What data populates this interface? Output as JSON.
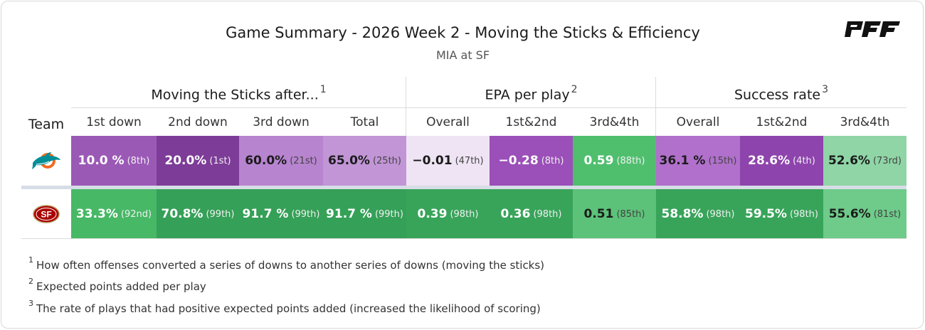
{
  "header": {
    "title": "Game Summary - 2026 Week 2 - Moving the Sticks & Efficiency",
    "subtitle": "MIA at SF",
    "brand": "PFF"
  },
  "table": {
    "team_label": "Team",
    "groups": [
      {
        "label": "Moving the Sticks after...",
        "note": "1"
      },
      {
        "label": "EPA per play",
        "note": "2"
      },
      {
        "label": "Success rate",
        "note": "3"
      }
    ],
    "columns": [
      "1st down",
      "2nd down",
      "3rd down",
      "Total",
      "Overall",
      "1st&2nd",
      "3rd&4th",
      "Overall",
      "1st&2nd",
      "3rd&4th"
    ],
    "rows": [
      {
        "team": "MIA",
        "team_icon": "dolphin-logo-icon",
        "cells": [
          {
            "value": "10.0 %",
            "rank": "(8th)",
            "color": "#9b59b6",
            "dark": true
          },
          {
            "value": "20.0%",
            "rank": "(1st)",
            "color": "#7d3c98",
            "dark": true
          },
          {
            "value": "60.0%",
            "rank": "(21st)",
            "color": "#b784d0",
            "dark": false
          },
          {
            "value": "65.0%",
            "rank": "(25th)",
            "color": "#c195d6",
            "dark": false
          },
          {
            "value": "−0.01",
            "rank": "(47th)",
            "color": "#efe4f4",
            "dark": false
          },
          {
            "value": "−0.28",
            "rank": "(8th)",
            "color": "#9b4fb8",
            "dark": true
          },
          {
            "value": "0.59",
            "rank": "(88th)",
            "color": "#4fbf6e",
            "dark": true
          },
          {
            "value": "36.1 %",
            "rank": "(15th)",
            "color": "#b070cb",
            "dark": false
          },
          {
            "value": "28.6%",
            "rank": "(4th)",
            "color": "#8e44ad",
            "dark": true
          },
          {
            "value": "52.6%",
            "rank": "(73rd)",
            "color": "#8fd5a6",
            "dark": false
          }
        ]
      },
      {
        "team": "SF",
        "team_icon": "sf-logo-icon",
        "cells": [
          {
            "value": "33.3%",
            "rank": "(92nd)",
            "color": "#47b866",
            "dark": true
          },
          {
            "value": "70.8%",
            "rank": "(99th)",
            "color": "#35a057",
            "dark": true
          },
          {
            "value": "91.7 %",
            "rank": "(99th)",
            "color": "#35a057",
            "dark": true
          },
          {
            "value": "91.7 %",
            "rank": "(99th)",
            "color": "#35a057",
            "dark": true
          },
          {
            "value": "0.39",
            "rank": "(98th)",
            "color": "#38a45a",
            "dark": true
          },
          {
            "value": "0.36",
            "rank": "(98th)",
            "color": "#38a45a",
            "dark": true
          },
          {
            "value": "0.51",
            "rank": "(85th)",
            "color": "#5cc279",
            "dark": false
          },
          {
            "value": "58.8%",
            "rank": "(98th)",
            "color": "#38a45a",
            "dark": true
          },
          {
            "value": "59.5%",
            "rank": "(98th)",
            "color": "#38a45a",
            "dark": true
          },
          {
            "value": "55.6%",
            "rank": "(81st)",
            "color": "#6ecb8a",
            "dark": false
          }
        ]
      }
    ]
  },
  "footnotes": [
    {
      "mark": "1",
      "text": "How often offenses converted a series of downs to another series of downs (moving the sticks)"
    },
    {
      "mark": "2",
      "text": "Expected points added per play"
    },
    {
      "mark": "3",
      "text": "The rate of plays that had positive expected points added (increased the likelihood of scoring)"
    }
  ]
}
